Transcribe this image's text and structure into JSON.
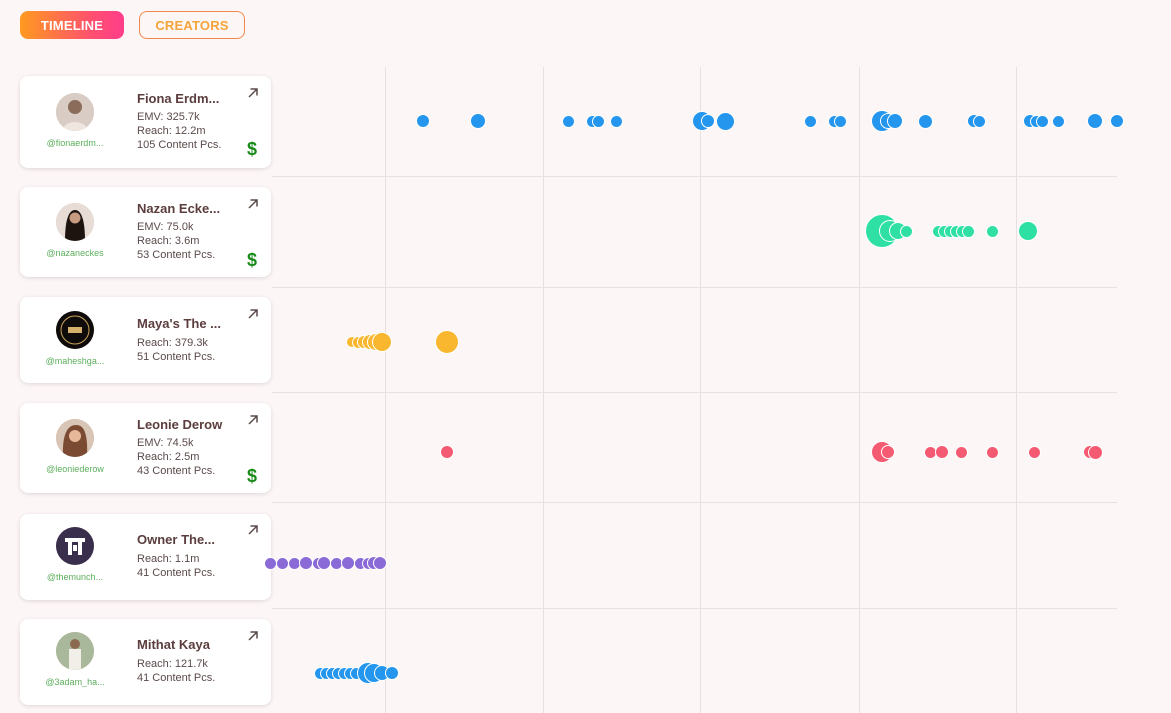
{
  "tabs": {
    "timeline": "TIMELINE",
    "creators": "CREATORS"
  },
  "colors": {
    "blue": "#2596ee",
    "green": "#2fe0a4",
    "orange": "#f8b72f",
    "red": "#f45a72",
    "purple": "#8a6ad6"
  },
  "creators": [
    {
      "name": "Fiona Erdm...",
      "handle": "@fionaerdm...",
      "emv": "EMV: 325.7k",
      "reach": "Reach: 12.2m",
      "content": "105 Content Pcs.",
      "paid": true,
      "dot_color": "blue"
    },
    {
      "name": "Nazan Ecke...",
      "handle": "@nazaneckes",
      "emv": "EMV: 75.0k",
      "reach": "Reach: 3.6m",
      "content": "53 Content Pcs.",
      "paid": true,
      "dot_color": "green"
    },
    {
      "name": "Maya's The ...",
      "handle": "@maheshga...",
      "emv": "",
      "reach": "Reach: 379.3k",
      "content": "51 Content Pcs.",
      "paid": false,
      "dot_color": "orange"
    },
    {
      "name": "Leonie Derow",
      "handle": "@leoniederow",
      "emv": "EMV: 74.5k",
      "reach": "Reach: 2.5m",
      "content": "43 Content Pcs.",
      "paid": true,
      "dot_color": "red"
    },
    {
      "name": "Owner The...",
      "handle": "@themunch...",
      "emv": "",
      "reach": "Reach: 1.1m",
      "content": "41 Content Pcs.",
      "paid": false,
      "dot_color": "purple"
    },
    {
      "name": "Mithat Kaya",
      "handle": "@3adam_ha...",
      "emv": "",
      "reach": "Reach: 121.7k",
      "content": "41 Content Pcs.",
      "paid": false,
      "dot_color": "blue"
    }
  ]
}
